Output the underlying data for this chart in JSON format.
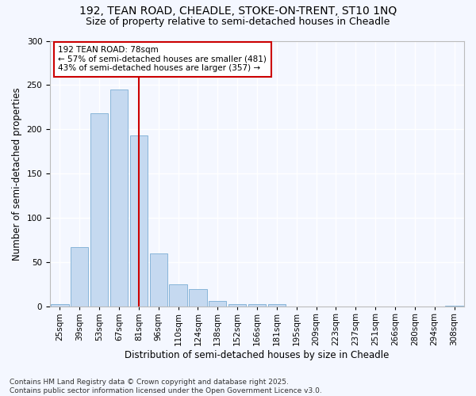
{
  "title1": "192, TEAN ROAD, CHEADLE, STOKE-ON-TRENT, ST10 1NQ",
  "title2": "Size of property relative to semi-detached houses in Cheadle",
  "xlabel": "Distribution of semi-detached houses by size in Cheadle",
  "ylabel": "Number of semi-detached properties",
  "bar_labels": [
    "25sqm",
    "39sqm",
    "53sqm",
    "67sqm",
    "81sqm",
    "96sqm",
    "110sqm",
    "124sqm",
    "138sqm",
    "152sqm",
    "166sqm",
    "181sqm",
    "195sqm",
    "209sqm",
    "223sqm",
    "237sqm",
    "251sqm",
    "266sqm",
    "280sqm",
    "294sqm",
    "308sqm"
  ],
  "bar_values": [
    3,
    67,
    218,
    245,
    193,
    60,
    25,
    20,
    7,
    3,
    3,
    3,
    0,
    0,
    0,
    0,
    0,
    0,
    0,
    0,
    1
  ],
  "bar_color": "#c5d9f0",
  "bar_edge_color": "#7aadd4",
  "vline_color": "#cc0000",
  "annotation_text": "192 TEAN ROAD: 78sqm\n← 57% of semi-detached houses are smaller (481)\n43% of semi-detached houses are larger (357) →",
  "annotation_box_color": "#ffffff",
  "annotation_box_edge": "#cc0000",
  "ylim": [
    0,
    300
  ],
  "yticks": [
    0,
    50,
    100,
    150,
    200,
    250,
    300
  ],
  "footer_text": "Contains HM Land Registry data © Crown copyright and database right 2025.\nContains public sector information licensed under the Open Government Licence v3.0.",
  "background_color": "#f4f7ff",
  "plot_background": "#f4f7ff",
  "grid_color": "#ffffff",
  "title_fontsize": 10,
  "subtitle_fontsize": 9,
  "axis_label_fontsize": 8.5,
  "tick_fontsize": 7.5,
  "footer_fontsize": 6.5,
  "annotation_fontsize": 7.5,
  "vline_bar_index": 4
}
